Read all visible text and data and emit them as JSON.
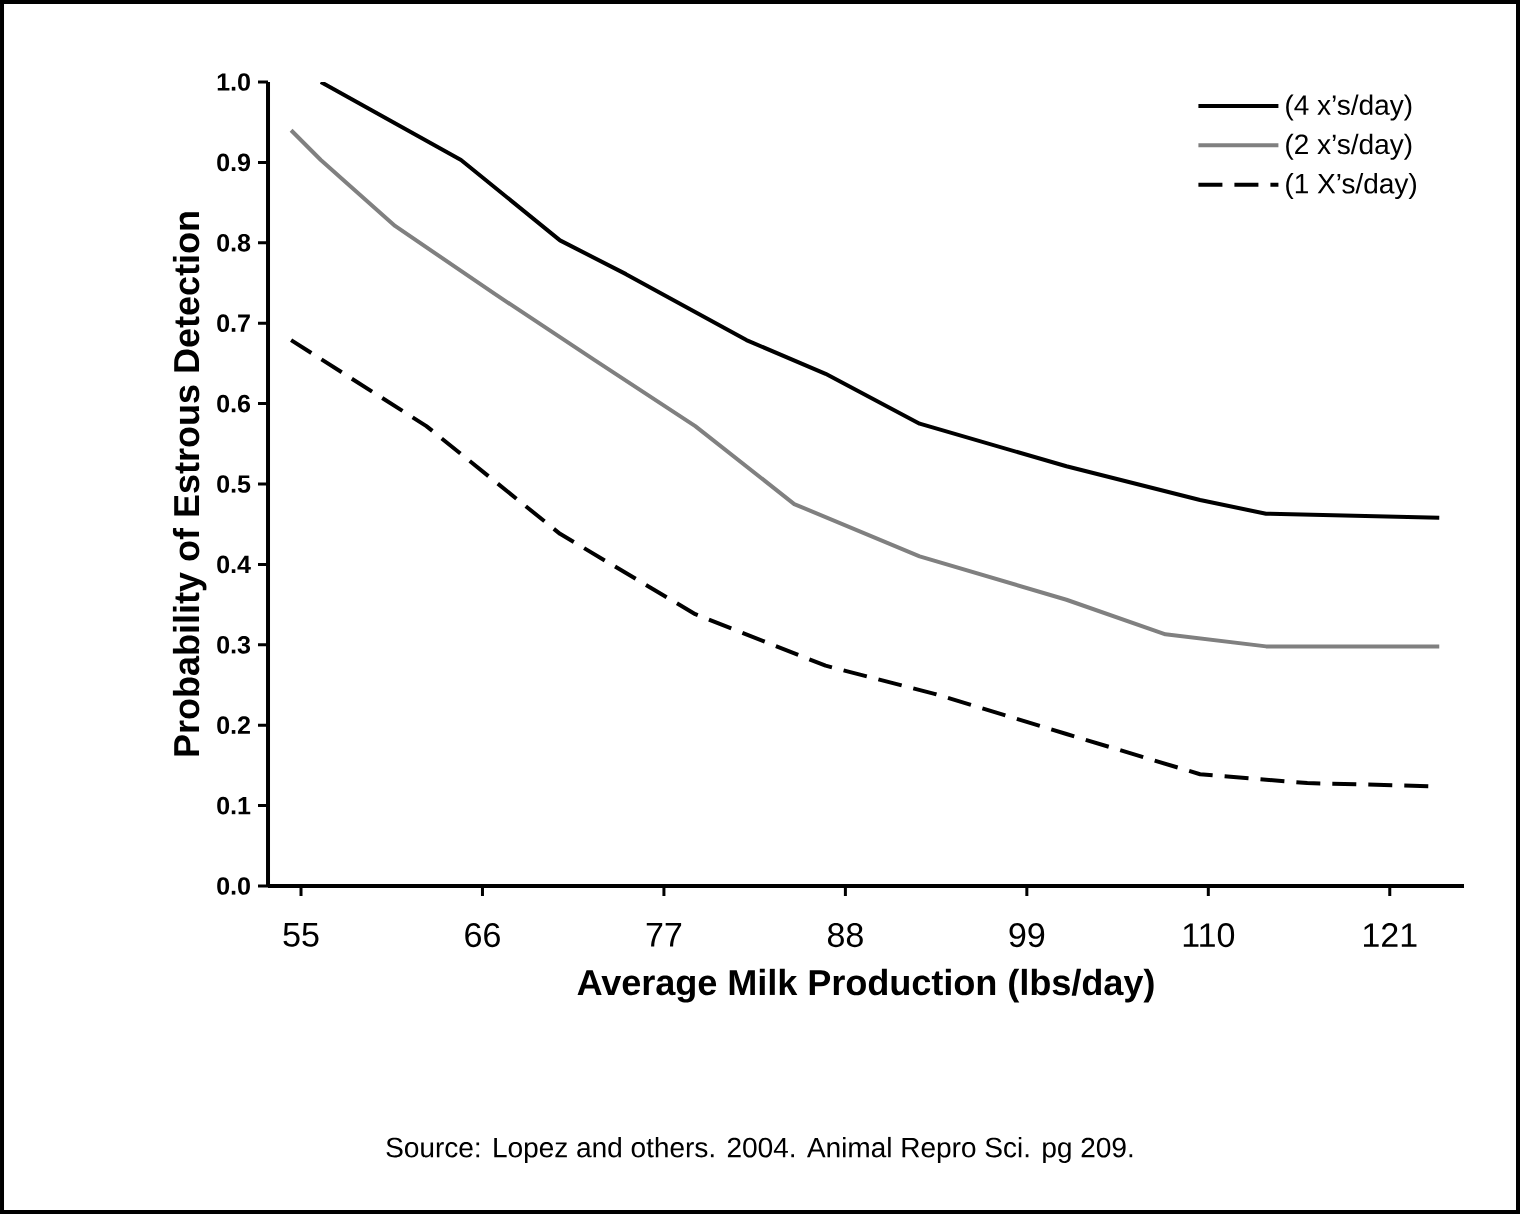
{
  "chart_data": {
    "type": "line",
    "xlabel": "Average Milk Production (lbs/day)",
    "ylabel": "Probability of Estrous Detection",
    "xlim": [
      53,
      125.5
    ],
    "ylim": [
      0,
      1.0
    ],
    "xticks": [
      55,
      66,
      77,
      88,
      99,
      110,
      121
    ],
    "yticks": [
      {
        "value": 0,
        "label": "0.0"
      },
      0.1,
      0.2,
      0.3,
      0.4,
      0.5,
      0.6,
      0.7,
      0.8,
      0.9,
      {
        "value": 1.0,
        "label": "1.0"
      }
    ],
    "series": [
      {
        "name": "(4 x’s/day)",
        "color": "#000000",
        "line_style": "solid",
        "x": [
          56.2,
          64.7,
          70.7,
          74.7,
          82.0,
          86.8,
          92.5,
          101.4,
          109.5,
          113.5,
          124.0
        ],
        "values": [
          1.0,
          0.903,
          0.803,
          0.761,
          0.679,
          0.637,
          0.575,
          0.522,
          0.48,
          0.463,
          0.458
        ]
      },
      {
        "name": "(2 x’s/day)",
        "color": "#808080",
        "line_style": "solid",
        "x": [
          54.4,
          56.2,
          60.7,
          66.7,
          72.8,
          78.9,
          84.9,
          92.5,
          101.4,
          107.4,
          113.5,
          124.0
        ],
        "values": [
          0.94,
          0.903,
          0.821,
          0.737,
          0.654,
          0.572,
          0.475,
          0.41,
          0.356,
          0.313,
          0.298,
          0.298
        ]
      },
      {
        "name": "(1 X’s/day)",
        "color": "#000000",
        "line_style": "dashed",
        "x": [
          54.4,
          62.6,
          70.7,
          78.9,
          86.8,
          93.4,
          101.4,
          109.5,
          116.0,
          123.7
        ],
        "values": [
          0.679,
          0.572,
          0.438,
          0.338,
          0.274,
          0.239,
          0.189,
          0.139,
          0.128,
          0.124
        ]
      }
    ],
    "legend": "top right",
    "grid": false,
    "annotations": [
      "Source: Lopez and others. 2004. Animal Repro Sci. pg 209."
    ]
  }
}
